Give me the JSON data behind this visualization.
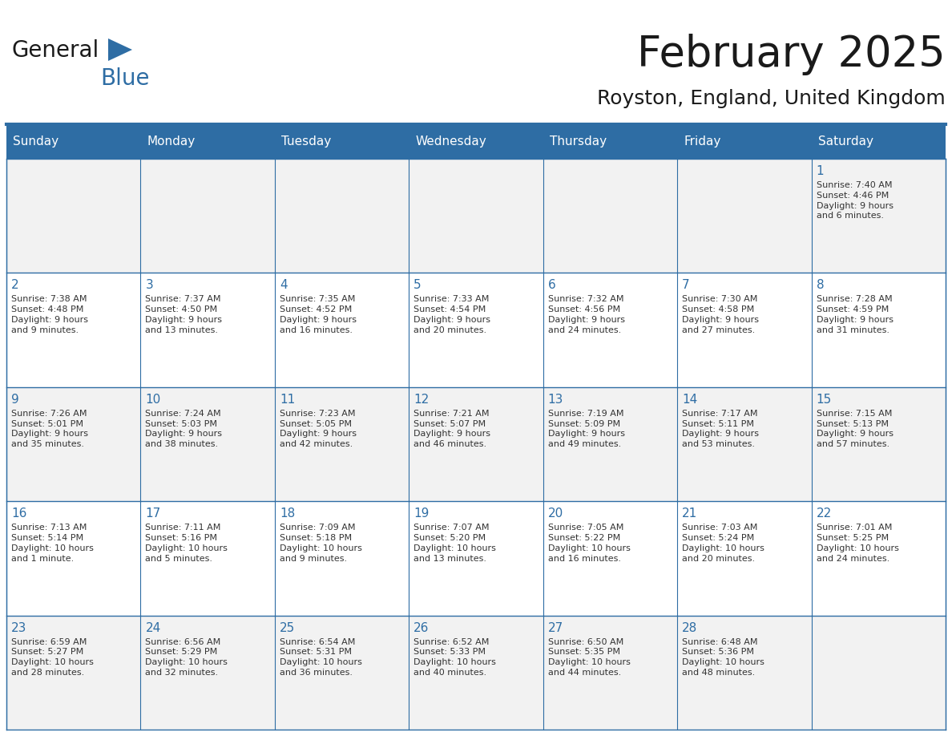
{
  "title": "February 2025",
  "subtitle": "Royston, England, United Kingdom",
  "header_bg_color": "#2E6DA4",
  "header_text_color": "#FFFFFF",
  "cell_bg_color": "#FFFFFF",
  "cell_odd_bg_color": "#F2F2F2",
  "day_number_color": "#2E6DA4",
  "text_color": "#333333",
  "line_color": "#2E6DA4",
  "days_of_week": [
    "Sunday",
    "Monday",
    "Tuesday",
    "Wednesday",
    "Thursday",
    "Friday",
    "Saturday"
  ],
  "weeks": [
    [
      {
        "day": null,
        "info": null
      },
      {
        "day": null,
        "info": null
      },
      {
        "day": null,
        "info": null
      },
      {
        "day": null,
        "info": null
      },
      {
        "day": null,
        "info": null
      },
      {
        "day": null,
        "info": null
      },
      {
        "day": 1,
        "info": "Sunrise: 7:40 AM\nSunset: 4:46 PM\nDaylight: 9 hours\nand 6 minutes."
      }
    ],
    [
      {
        "day": 2,
        "info": "Sunrise: 7:38 AM\nSunset: 4:48 PM\nDaylight: 9 hours\nand 9 minutes."
      },
      {
        "day": 3,
        "info": "Sunrise: 7:37 AM\nSunset: 4:50 PM\nDaylight: 9 hours\nand 13 minutes."
      },
      {
        "day": 4,
        "info": "Sunrise: 7:35 AM\nSunset: 4:52 PM\nDaylight: 9 hours\nand 16 minutes."
      },
      {
        "day": 5,
        "info": "Sunrise: 7:33 AM\nSunset: 4:54 PM\nDaylight: 9 hours\nand 20 minutes."
      },
      {
        "day": 6,
        "info": "Sunrise: 7:32 AM\nSunset: 4:56 PM\nDaylight: 9 hours\nand 24 minutes."
      },
      {
        "day": 7,
        "info": "Sunrise: 7:30 AM\nSunset: 4:58 PM\nDaylight: 9 hours\nand 27 minutes."
      },
      {
        "day": 8,
        "info": "Sunrise: 7:28 AM\nSunset: 4:59 PM\nDaylight: 9 hours\nand 31 minutes."
      }
    ],
    [
      {
        "day": 9,
        "info": "Sunrise: 7:26 AM\nSunset: 5:01 PM\nDaylight: 9 hours\nand 35 minutes."
      },
      {
        "day": 10,
        "info": "Sunrise: 7:24 AM\nSunset: 5:03 PM\nDaylight: 9 hours\nand 38 minutes."
      },
      {
        "day": 11,
        "info": "Sunrise: 7:23 AM\nSunset: 5:05 PM\nDaylight: 9 hours\nand 42 minutes."
      },
      {
        "day": 12,
        "info": "Sunrise: 7:21 AM\nSunset: 5:07 PM\nDaylight: 9 hours\nand 46 minutes."
      },
      {
        "day": 13,
        "info": "Sunrise: 7:19 AM\nSunset: 5:09 PM\nDaylight: 9 hours\nand 49 minutes."
      },
      {
        "day": 14,
        "info": "Sunrise: 7:17 AM\nSunset: 5:11 PM\nDaylight: 9 hours\nand 53 minutes."
      },
      {
        "day": 15,
        "info": "Sunrise: 7:15 AM\nSunset: 5:13 PM\nDaylight: 9 hours\nand 57 minutes."
      }
    ],
    [
      {
        "day": 16,
        "info": "Sunrise: 7:13 AM\nSunset: 5:14 PM\nDaylight: 10 hours\nand 1 minute."
      },
      {
        "day": 17,
        "info": "Sunrise: 7:11 AM\nSunset: 5:16 PM\nDaylight: 10 hours\nand 5 minutes."
      },
      {
        "day": 18,
        "info": "Sunrise: 7:09 AM\nSunset: 5:18 PM\nDaylight: 10 hours\nand 9 minutes."
      },
      {
        "day": 19,
        "info": "Sunrise: 7:07 AM\nSunset: 5:20 PM\nDaylight: 10 hours\nand 13 minutes."
      },
      {
        "day": 20,
        "info": "Sunrise: 7:05 AM\nSunset: 5:22 PM\nDaylight: 10 hours\nand 16 minutes."
      },
      {
        "day": 21,
        "info": "Sunrise: 7:03 AM\nSunset: 5:24 PM\nDaylight: 10 hours\nand 20 minutes."
      },
      {
        "day": 22,
        "info": "Sunrise: 7:01 AM\nSunset: 5:25 PM\nDaylight: 10 hours\nand 24 minutes."
      }
    ],
    [
      {
        "day": 23,
        "info": "Sunrise: 6:59 AM\nSunset: 5:27 PM\nDaylight: 10 hours\nand 28 minutes."
      },
      {
        "day": 24,
        "info": "Sunrise: 6:56 AM\nSunset: 5:29 PM\nDaylight: 10 hours\nand 32 minutes."
      },
      {
        "day": 25,
        "info": "Sunrise: 6:54 AM\nSunset: 5:31 PM\nDaylight: 10 hours\nand 36 minutes."
      },
      {
        "day": 26,
        "info": "Sunrise: 6:52 AM\nSunset: 5:33 PM\nDaylight: 10 hours\nand 40 minutes."
      },
      {
        "day": 27,
        "info": "Sunrise: 6:50 AM\nSunset: 5:35 PM\nDaylight: 10 hours\nand 44 minutes."
      },
      {
        "day": 28,
        "info": "Sunrise: 6:48 AM\nSunset: 5:36 PM\nDaylight: 10 hours\nand 48 minutes."
      },
      {
        "day": null,
        "info": null
      }
    ]
  ],
  "logo_color_general": "#1a1a1a",
  "logo_color_blue": "#2E6DA4",
  "logo_triangle_color": "#2E6DA4",
  "title_fontsize": 38,
  "subtitle_fontsize": 18,
  "header_fontsize": 11,
  "day_num_fontsize": 11,
  "info_fontsize": 8
}
